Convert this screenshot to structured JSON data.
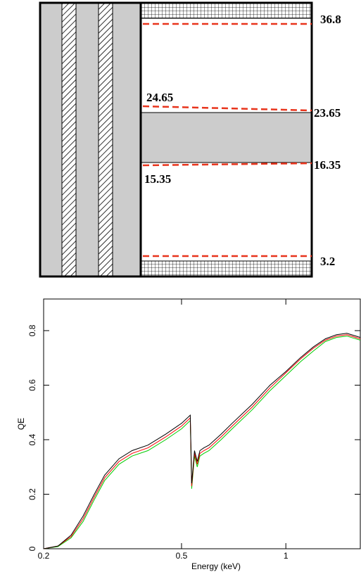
{
  "diagram": {
    "labels": {
      "top_right": "36.8",
      "upper_left": "24.65",
      "upper_right": "23.65",
      "lower_right": "16.35",
      "lower_left": "15.35",
      "bottom_right": "3.2"
    }
  },
  "chart_data": {
    "type": "line",
    "xlabel": "Energy (keV)",
    "ylabel": "QE",
    "xscale": "log",
    "xlim": [
      0.2,
      1.64
    ],
    "ylim": [
      0,
      0.916
    ],
    "xticks": [
      0.2,
      0.5,
      1
    ],
    "yticks": [
      0,
      0.2,
      0.4,
      0.6,
      0.8
    ],
    "x": [
      0.2,
      0.22,
      0.24,
      0.26,
      0.28,
      0.3,
      0.33,
      0.36,
      0.4,
      0.45,
      0.5,
      0.53,
      0.535,
      0.545,
      0.555,
      0.565,
      0.58,
      0.6,
      0.65,
      0.7,
      0.8,
      0.9,
      1.0,
      1.1,
      1.2,
      1.3,
      1.4,
      1.5,
      1.64
    ],
    "series": [
      {
        "color": "#000000",
        "values": [
          0,
          0.01,
          0.05,
          0.12,
          0.2,
          0.27,
          0.33,
          0.36,
          0.38,
          0.42,
          0.46,
          0.49,
          0.24,
          0.36,
          0.32,
          0.36,
          0.37,
          0.38,
          0.42,
          0.46,
          0.53,
          0.6,
          0.65,
          0.7,
          0.74,
          0.77,
          0.785,
          0.79,
          0.775
        ]
      },
      {
        "color": "#ff0000",
        "values": [
          0,
          0.01,
          0.045,
          0.11,
          0.19,
          0.26,
          0.32,
          0.35,
          0.37,
          0.41,
          0.45,
          0.48,
          0.23,
          0.35,
          0.31,
          0.35,
          0.36,
          0.37,
          0.41,
          0.45,
          0.52,
          0.59,
          0.645,
          0.695,
          0.735,
          0.765,
          0.78,
          0.785,
          0.77
        ]
      },
      {
        "color": "#00cc00",
        "values": [
          0,
          0.008,
          0.04,
          0.1,
          0.18,
          0.25,
          0.31,
          0.34,
          0.36,
          0.4,
          0.44,
          0.47,
          0.22,
          0.34,
          0.3,
          0.34,
          0.35,
          0.36,
          0.4,
          0.44,
          0.51,
          0.58,
          0.635,
          0.685,
          0.725,
          0.76,
          0.775,
          0.78,
          0.765
        ]
      }
    ]
  }
}
